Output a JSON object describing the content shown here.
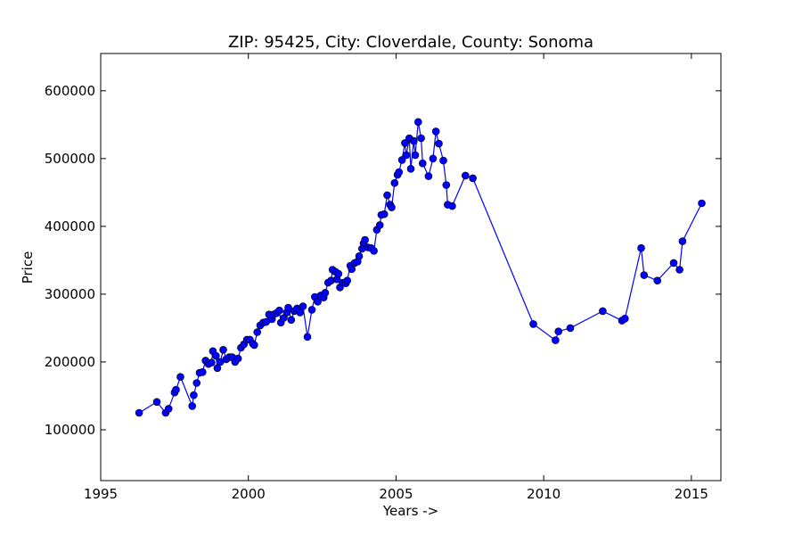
{
  "chart_data": {
    "type": "line",
    "title": "ZIP: 95425, City: Cloverdale, County: Sonoma",
    "xlabel": "Years ->",
    "ylabel": "Price",
    "xlim": [
      1995,
      2016
    ],
    "ylim": [
      25000,
      655000
    ],
    "xticks": [
      1995,
      2000,
      2005,
      2010,
      2015
    ],
    "yticks": [
      100000,
      200000,
      300000,
      400000,
      500000,
      600000
    ],
    "grid": false,
    "legend": "none",
    "series": [
      {
        "color": "#0000ff",
        "marker": "circle",
        "points": [
          [
            1996.3,
            125000
          ],
          [
            1996.9,
            141000
          ],
          [
            1997.2,
            125000
          ],
          [
            1997.3,
            131000
          ],
          [
            1997.5,
            155000
          ],
          [
            1997.55,
            159000
          ],
          [
            1997.7,
            178000
          ],
          [
            1998.1,
            135000
          ],
          [
            1998.15,
            151000
          ],
          [
            1998.25,
            169000
          ],
          [
            1998.35,
            184000
          ],
          [
            1998.45,
            185000
          ],
          [
            1998.55,
            202000
          ],
          [
            1998.65,
            197000
          ],
          [
            1998.75,
            199000
          ],
          [
            1998.8,
            216000
          ],
          [
            1998.9,
            209000
          ],
          [
            1998.95,
            191000
          ],
          [
            1999.05,
            200000
          ],
          [
            1999.15,
            218000
          ],
          [
            1999.25,
            204000
          ],
          [
            1999.35,
            207000
          ],
          [
            1999.45,
            207000
          ],
          [
            1999.55,
            200000
          ],
          [
            1999.65,
            205000
          ],
          [
            1999.75,
            221000
          ],
          [
            1999.85,
            226000
          ],
          [
            1999.95,
            233000
          ],
          [
            2000.05,
            233000
          ],
          [
            2000.15,
            227000
          ],
          [
            2000.2,
            225000
          ],
          [
            2000.3,
            244000
          ],
          [
            2000.4,
            254000
          ],
          [
            2000.5,
            258000
          ],
          [
            2000.6,
            259000
          ],
          [
            2000.7,
            270000
          ],
          [
            2000.8,
            263000
          ],
          [
            2000.85,
            270000
          ],
          [
            2000.95,
            272000
          ],
          [
            2001.05,
            276000
          ],
          [
            2001.1,
            258000
          ],
          [
            2001.2,
            265000
          ],
          [
            2001.3,
            273000
          ],
          [
            2001.35,
            280000
          ],
          [
            2001.45,
            262000
          ],
          [
            2001.55,
            275000
          ],
          [
            2001.65,
            279000
          ],
          [
            2001.75,
            273000
          ],
          [
            2001.85,
            282000
          ],
          [
            2002.0,
            237000
          ],
          [
            2002.15,
            277000
          ],
          [
            2002.25,
            296000
          ],
          [
            2002.35,
            289000
          ],
          [
            2002.45,
            298000
          ],
          [
            2002.55,
            295000
          ],
          [
            2002.6,
            302000
          ],
          [
            2002.7,
            317000
          ],
          [
            2002.8,
            320000
          ],
          [
            2002.85,
            336000
          ],
          [
            2002.95,
            333000
          ],
          [
            2003.0,
            322000
          ],
          [
            2003.05,
            330000
          ],
          [
            2003.1,
            310000
          ],
          [
            2003.2,
            317000
          ],
          [
            2003.3,
            316000
          ],
          [
            2003.35,
            320000
          ],
          [
            2003.45,
            342000
          ],
          [
            2003.5,
            337000
          ],
          [
            2003.6,
            346000
          ],
          [
            2003.7,
            348000
          ],
          [
            2003.75,
            356000
          ],
          [
            2003.85,
            367000
          ],
          [
            2003.9,
            375000
          ],
          [
            2003.95,
            380000
          ],
          [
            2004.05,
            369000
          ],
          [
            2004.15,
            368000
          ],
          [
            2004.25,
            364000
          ],
          [
            2004.35,
            395000
          ],
          [
            2004.45,
            402000
          ],
          [
            2004.5,
            417000
          ],
          [
            2004.6,
            418000
          ],
          [
            2004.7,
            446000
          ],
          [
            2004.8,
            432000
          ],
          [
            2004.85,
            428000
          ],
          [
            2004.95,
            464000
          ],
          [
            2005.05,
            476000
          ],
          [
            2005.1,
            480000
          ],
          [
            2005.2,
            498000
          ],
          [
            2005.3,
            523000
          ],
          [
            2005.35,
            505000
          ],
          [
            2005.45,
            530000
          ],
          [
            2005.5,
            485000
          ],
          [
            2005.6,
            526000
          ],
          [
            2005.65,
            505000
          ],
          [
            2005.75,
            554000
          ],
          [
            2005.85,
            530000
          ],
          [
            2005.9,
            493000
          ],
          [
            2006.1,
            474000
          ],
          [
            2006.25,
            500000
          ],
          [
            2006.35,
            540000
          ],
          [
            2006.45,
            522000
          ],
          [
            2006.6,
            497000
          ],
          [
            2006.7,
            461000
          ],
          [
            2006.75,
            432000
          ],
          [
            2006.9,
            430000
          ],
          [
            2007.35,
            475000
          ],
          [
            2007.6,
            471000
          ],
          [
            2009.65,
            256000
          ],
          [
            2010.4,
            232000
          ],
          [
            2010.5,
            245000
          ],
          [
            2010.9,
            250000
          ],
          [
            2012.0,
            275000
          ],
          [
            2012.65,
            261000
          ],
          [
            2012.75,
            264000
          ],
          [
            2013.3,
            368000
          ],
          [
            2013.4,
            328000
          ],
          [
            2013.85,
            320000
          ],
          [
            2014.4,
            346000
          ],
          [
            2014.6,
            336000
          ],
          [
            2014.7,
            378000
          ],
          [
            2015.35,
            434000
          ]
        ]
      }
    ]
  }
}
